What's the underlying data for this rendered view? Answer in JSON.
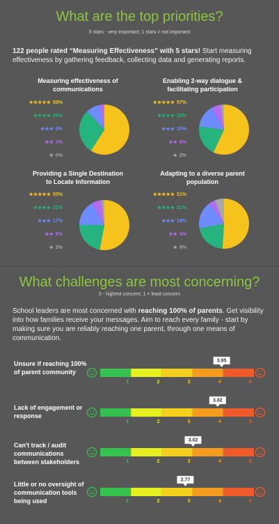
{
  "header": {
    "title": "What are the top priorities?",
    "subtitle": "5 stars - very important; 1 stars = not important"
  },
  "intro": {
    "bold": "122 people rated “Measuring Effectiveness” with 5 stars!",
    "text": "Start measuring effectiveness by gathering feedback, collecting data and generating reports."
  },
  "section2": {
    "title": "What challenges are most concerning?",
    "subtitle": "5 - highest concern; 1 = least concern",
    "text_start": "School leaders are most concerned with",
    "bold": "reaching 100% of parents",
    "text_end": ". Get visibility into how families receive your messages. Aim to reach every family - start by making sure you are reliably reaching one parent, through one means of communication."
  },
  "chart_data": [
    {
      "type": "pie",
      "title": "Measuring effectiveness of communications",
      "categories": [
        "★★★★★",
        "★★★★",
        "★★★",
        "★★",
        "★"
      ],
      "values": [
        59,
        29,
        9,
        3,
        0
      ],
      "value_labels": [
        "59%",
        "29%",
        "9%",
        "3%",
        "0%"
      ],
      "colors": [
        "#f6c21c",
        "#25b47e",
        "#6f8cff",
        "#b56cf0",
        "#a8a8a8"
      ]
    },
    {
      "type": "pie",
      "title": "Enabling 2-way dialogue & facilitating participation",
      "categories": [
        "★★★★★",
        "★★★★",
        "★★★",
        "★★",
        "★"
      ],
      "values": [
        57,
        20,
        15,
        6,
        2
      ],
      "value_labels": [
        "57%",
        "20%",
        "15%",
        "6%",
        "2%"
      ],
      "colors": [
        "#f6c21c",
        "#25b47e",
        "#6f8cff",
        "#b56cf0",
        "#a8a8a8"
      ]
    },
    {
      "type": "pie",
      "title": "Providing a Single Destination to Locate Information",
      "categories": [
        "★★★★★",
        "★★★★",
        "★★★",
        "★★",
        "★"
      ],
      "values": [
        53,
        22,
        17,
        6,
        2
      ],
      "value_labels": [
        "53%",
        "22%",
        "17%",
        "6%",
        "2%"
      ],
      "colors": [
        "#f6c21c",
        "#25b47e",
        "#6f8cff",
        "#b56cf0",
        "#a8a8a8"
      ]
    },
    {
      "type": "pie",
      "title": "Adapting to a diverse parent population",
      "categories": [
        "★★★★★",
        "★★★★",
        "★★★",
        "★★",
        "★"
      ],
      "values": [
        51,
        21,
        18,
        4,
        6
      ],
      "value_labels": [
        "51%",
        "21%",
        "18%",
        "4%",
        "6%"
      ],
      "colors": [
        "#f6c21c",
        "#25b47e",
        "#6f8cff",
        "#b56cf0",
        "#a8a8a8"
      ]
    },
    {
      "type": "gauge",
      "title": "Unsure if reaching 100% of parent community",
      "value": 3.95,
      "xlim": [
        0,
        5
      ],
      "xticks": [
        1,
        2,
        3,
        4,
        5
      ],
      "colors": [
        "#35c24f",
        "#e6ef1f",
        "#f4d01d",
        "#f59b1d",
        "#ef5a2a"
      ]
    },
    {
      "type": "gauge",
      "title": "Lack of engagement or response",
      "value": 3.82,
      "xlim": [
        0,
        5
      ],
      "xticks": [
        1,
        2,
        3,
        4,
        5
      ],
      "colors": [
        "#35c24f",
        "#e6ef1f",
        "#f4d01d",
        "#f59b1d",
        "#ef5a2a"
      ]
    },
    {
      "type": "gauge",
      "title": "Can't track / audit communications between stakeholders",
      "value": 3.02,
      "xlim": [
        0,
        5
      ],
      "xticks": [
        1,
        2,
        3,
        4,
        5
      ],
      "colors": [
        "#35c24f",
        "#e6ef1f",
        "#f4d01d",
        "#f59b1d",
        "#ef5a2a"
      ]
    },
    {
      "type": "gauge",
      "title": "Little or no oversight of communication tools being used",
      "value": 2.77,
      "xlim": [
        0,
        5
      ],
      "xticks": [
        1,
        2,
        3,
        4,
        5
      ],
      "colors": [
        "#35c24f",
        "#e6ef1f",
        "#f4d01d",
        "#f59b1d",
        "#ef5a2a"
      ]
    }
  ]
}
